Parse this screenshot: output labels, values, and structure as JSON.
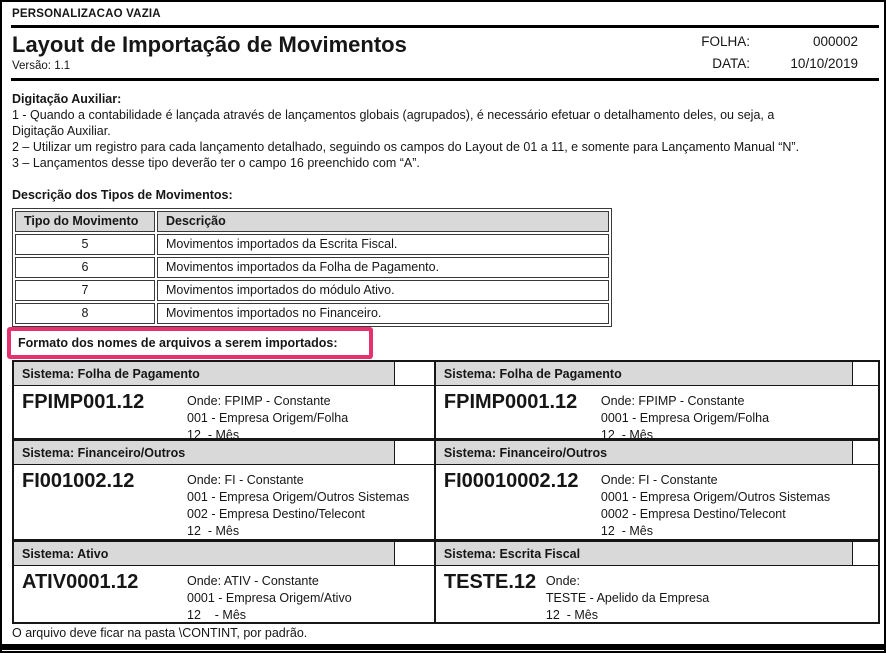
{
  "header": {
    "letterhead": "PERSONALIZACAO VAZIA",
    "title": "Layout de Importação de Movimentos",
    "version": "Versão: 1.1",
    "folha_label": "FOLHA:",
    "folha_value": "000002",
    "data_label": "DATA:",
    "data_value": "10/10/2019"
  },
  "aux_section": {
    "heading": "Digitação Auxiliar:",
    "body": "1 - Quando a contabilidade é lançada através de lançamentos globais (agrupados), é necessário efetuar o detalhamento deles, ou seja, a\nDigitação Auxiliar.\n2 – Utilizar um registro para cada lançamento detalhado, seguindo os campos do Layout de 01 a 11, e somente para Lançamento Manual “N”.\n3 – Lançamentos desse tipo deverão ter o campo 16 preenchido com “A”."
  },
  "movements": {
    "heading": "Descrição dos Tipos de Movimentos:",
    "headers": [
      "Tipo do Movimento",
      "Descrição"
    ],
    "rows": [
      {
        "tipo": "5",
        "descricao": "Movimentos importados da Escrita Fiscal."
      },
      {
        "tipo": "6",
        "descricao": "Movimentos importados da Folha de Pagamento."
      },
      {
        "tipo": "7",
        "descricao": "Movimentos importados do módulo Ativo."
      },
      {
        "tipo": "8",
        "descricao": "Movimentos importados no Financeiro."
      }
    ]
  },
  "formats": {
    "heading": "Formato dos nomes de arquivos a serem importados:",
    "sections": [
      {
        "left": {
          "system": "Sistema: Folha de Pagamento",
          "filename": "FPIMP001.12",
          "desc": "Onde: FPIMP - Constante\n001 - Empresa Origem/Folha\n12  - Mês"
        },
        "right": {
          "system": "Sistema: Folha de Pagamento",
          "filename": "FPIMP0001.12",
          "desc": "Onde: FPIMP - Constante\n0001 - Empresa Origem/Folha\n12  - Mês"
        }
      },
      {
        "left": {
          "system": "Sistema: Financeiro/Outros",
          "filename": "FI001002.12",
          "desc": "Onde: FI - Constante\n001 - Empresa Origem/Outros Sistemas\n002 - Empresa Destino/Telecont\n12  - Mês"
        },
        "right": {
          "system": "Sistema: Financeiro/Outros",
          "filename": "FI00010002.12",
          "desc": "Onde: FI - Constante\n0001 - Empresa Origem/Outros Sistemas\n0002 - Empresa Destino/Telecont\n12  - Mês"
        }
      },
      {
        "left": {
          "system": "Sistema: Ativo",
          "filename": "ATIV0001.12",
          "desc": "Onde: ATIV - Constante\n0001 - Empresa Origem/Ativo\n12    - Mês"
        },
        "right": {
          "system": "Sistema: Escrita Fiscal",
          "filename": "TESTE.12",
          "desc": "Onde:\nTESTE - Apelido da Empresa\n12  - Mês"
        }
      }
    ]
  },
  "footer": {
    "note": "O arquivo deve ficar na pasta \\CONTINT, por padrão."
  },
  "colors": {
    "highlight_border": "#e5316d",
    "header_gray": "#d9d9d9"
  }
}
